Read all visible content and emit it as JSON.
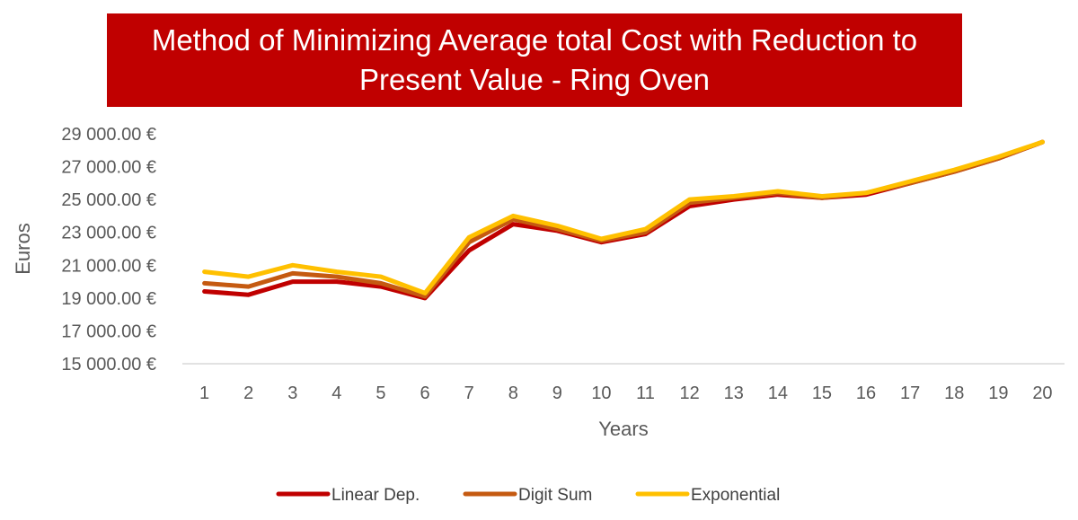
{
  "chart_data": {
    "type": "line",
    "title": "Method of Minimizing Average total Cost with Reduction to Present Value - Ring Oven",
    "title_lines": [
      "Method of Minimizing Average total Cost with Reduction to",
      "Present Value - Ring Oven"
    ],
    "xlabel": "Years",
    "ylabel": "Euros",
    "categories": [
      "1",
      "2",
      "3",
      "4",
      "5",
      "6",
      "7",
      "8",
      "9",
      "10",
      "11",
      "12",
      "13",
      "14",
      "15",
      "16",
      "17",
      "18",
      "19",
      "20"
    ],
    "y_ticks": [
      15000,
      17000,
      19000,
      21000,
      23000,
      25000,
      27000,
      29000
    ],
    "y_tick_labels": [
      "15 000.00 €",
      "17 000.00 €",
      "19 000.00 €",
      "21 000.00 €",
      "23 000.00 €",
      "25 000.00 €",
      "27 000.00 €",
      "29 000.00 €"
    ],
    "ylim": [
      15000,
      29000
    ],
    "grid": false,
    "legend_position": "bottom",
    "series": [
      {
        "name": "Linear Dep.",
        "color": "#c00000",
        "values": [
          19400,
          19200,
          20000,
          20000,
          19700,
          19000,
          21900,
          23500,
          23100,
          22400,
          22900,
          24600,
          25000,
          25300,
          25100,
          25300,
          26000,
          26700,
          27500,
          28500
        ]
      },
      {
        "name": "Digit Sum",
        "color": "#c55a11",
        "values": [
          19900,
          19700,
          20500,
          20300,
          19900,
          19100,
          22400,
          23800,
          23200,
          22500,
          23000,
          24800,
          25100,
          25400,
          25100,
          25400,
          26000,
          26700,
          27500,
          28500
        ]
      },
      {
        "name": "Exponential",
        "color": "#ffc000",
        "values": [
          20600,
          20300,
          21000,
          20600,
          20300,
          19300,
          22700,
          24000,
          23400,
          22600,
          23200,
          25000,
          25200,
          25500,
          25200,
          25400,
          26100,
          26800,
          27600,
          28500
        ]
      }
    ]
  }
}
